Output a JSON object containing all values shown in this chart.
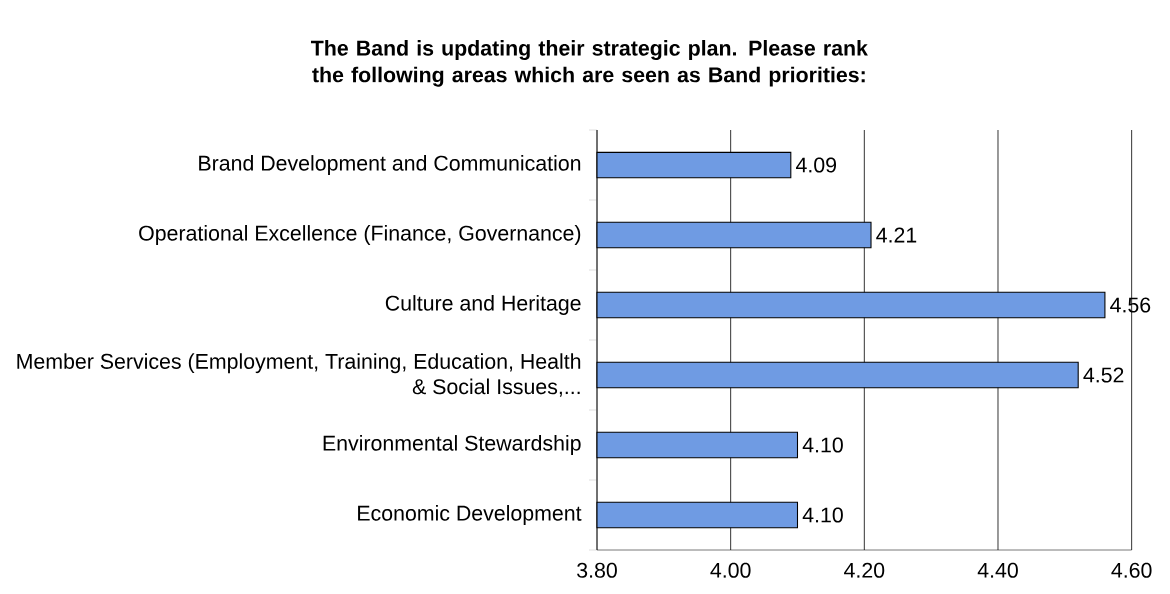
{
  "chart_data": {
    "type": "bar",
    "orientation": "horizontal",
    "title": "The Band is updating their strategic plan.  Please rank the following areas which are seen as Band priorities:",
    "categories": [
      "Brand Development and Communication",
      "Operational Excellence (Finance, Governance)",
      "Culture and Heritage",
      "Member Services (Employment, Training, Education, Health & Social Issues,...",
      "Environmental Stewardship",
      "Economic Development"
    ],
    "values": [
      4.09,
      4.21,
      4.56,
      4.52,
      4.1,
      4.1
    ],
    "value_labels": [
      "4.09",
      "4.21",
      "4.56",
      "4.52",
      "4.10",
      "4.10"
    ],
    "color": "#6f9be3",
    "xlim": [
      3.8,
      4.6
    ],
    "xticks": [
      {
        "value": 3.8,
        "label": "3.80"
      },
      {
        "value": 4.0,
        "label": "4.00"
      },
      {
        "value": 4.2,
        "label": "4.20"
      },
      {
        "value": 4.4,
        "label": "4.40"
      },
      {
        "value": 4.6,
        "label": "4.60"
      }
    ],
    "grid": "x"
  }
}
